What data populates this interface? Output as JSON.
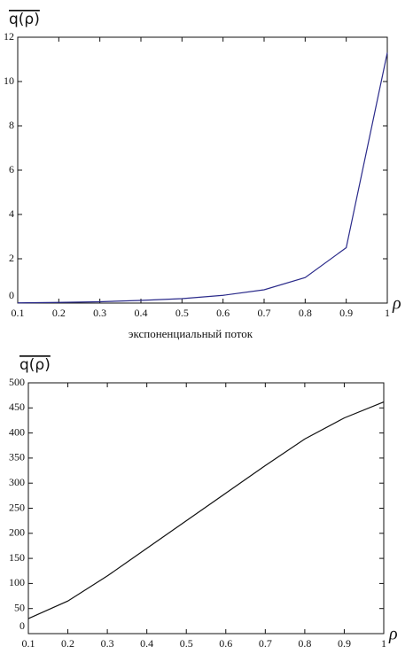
{
  "chart_data": [
    {
      "type": "line",
      "y_label": "q(ρ)",
      "x_label": "ρ",
      "caption": "экспоненциальный поток",
      "x": [
        0.1,
        0.2,
        0.3,
        0.4,
        0.5,
        0.6,
        0.7,
        0.8,
        0.9,
        1
      ],
      "series": [
        {
          "name": "q",
          "color": "#2a2a8a",
          "values": [
            0.01,
            0.03,
            0.06,
            0.12,
            0.2,
            0.35,
            0.6,
            1.15,
            2.5,
            11.3
          ]
        }
      ],
      "xlim": [
        0.1,
        1
      ],
      "xticks": [
        0.1,
        0.2,
        0.3,
        0.4,
        0.5,
        0.6,
        0.7,
        0.8,
        0.9,
        1
      ],
      "ylim": [
        0,
        12
      ],
      "yticks": [
        0,
        2,
        4,
        6,
        8,
        10,
        12
      ]
    },
    {
      "type": "line",
      "y_label": "q(ρ)",
      "x_label": "ρ",
      "x": [
        0.1,
        0.2,
        0.3,
        0.4,
        0.5,
        0.6,
        0.7,
        0.8,
        0.9,
        1
      ],
      "series": [
        {
          "name": "q",
          "color": "#111111",
          "values": [
            30,
            65,
            115,
            170,
            225,
            280,
            335,
            388,
            430,
            462
          ]
        }
      ],
      "xlim": [
        0.1,
        1
      ],
      "xticks": [
        0.1,
        0.2,
        0.3,
        0.4,
        0.5,
        0.6,
        0.7,
        0.8,
        0.9,
        1
      ],
      "ylim": [
        0,
        500
      ],
      "yticks": [
        0,
        50,
        100,
        150,
        200,
        250,
        300,
        350,
        400,
        450,
        500
      ]
    }
  ]
}
